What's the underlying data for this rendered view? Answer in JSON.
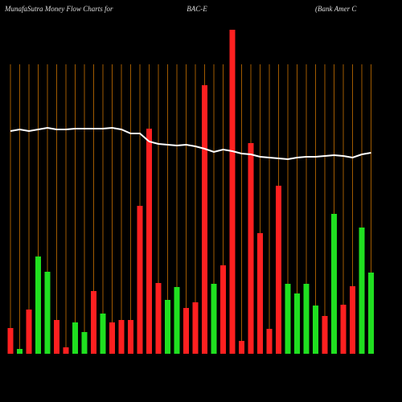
{
  "chart_data": {
    "type": "bar",
    "title": "MunafaSutra  Money Flow  Charts for",
    "subtitle": "BAC-E",
    "company": "(Bank Amer C",
    "values": [
      32,
      6,
      55,
      121,
      102,
      42,
      8,
      39,
      27,
      78,
      50,
      39,
      42,
      42,
      184,
      280,
      88,
      67,
      83,
      57,
      64,
      334,
      87,
      110,
      403,
      16,
      262,
      150,
      31,
      209,
      87,
      75,
      87,
      60,
      47,
      174,
      61,
      84,
      157,
      101
    ],
    "colors": [
      "#ff2020",
      "#20e020",
      "#ff2020",
      "#20e020",
      "#20e020",
      "#ff2020",
      "#ff2020",
      "#20e020",
      "#20e020",
      "#ff2020",
      "#20e020",
      "#ff2020",
      "#ff2020",
      "#ff2020",
      "#ff2020",
      "#ff2020",
      "#ff2020",
      "#20e020",
      "#20e020",
      "#ff2020",
      "#ff2020",
      "#ff2020",
      "#20e020",
      "#ff2020",
      "#ff2020",
      "#ff2020",
      "#ff2020",
      "#ff2020",
      "#ff2020",
      "#ff2020",
      "#20e020",
      "#20e020",
      "#20e020",
      "#20e020",
      "#ff2020",
      "#20e020",
      "#ff2020",
      "#ff2020",
      "#20e020",
      "#20e020"
    ],
    "line": {
      "color": "#ffffff",
      "values": [
        277,
        279,
        277,
        279,
        281,
        279,
        279,
        280,
        280,
        280,
        280,
        281,
        279,
        274,
        274,
        264,
        261,
        260,
        259,
        260,
        258,
        255,
        251,
        254,
        252,
        249,
        248,
        245,
        244,
        243,
        242,
        244,
        245,
        245,
        246,
        247,
        246,
        244,
        248,
        250
      ]
    },
    "ylim": [
      0,
      440
    ],
    "grid_color": "#a05a00"
  }
}
